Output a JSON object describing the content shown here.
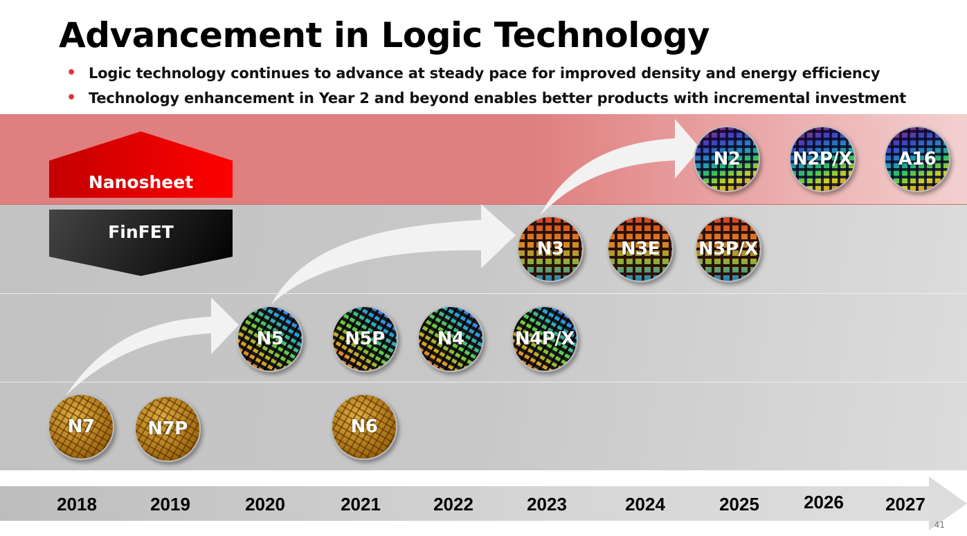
{
  "title": "Advancement in Logic Technology",
  "bullets": [
    "Logic technology continues to advance at steady pace for improved density and energy efficiency",
    "Technology enhancement in Year 2 and beyond enables better products with incremental investment"
  ],
  "colors": {
    "bullet": "#e8313a",
    "nanosheet": "#ff0000",
    "finfet": "#000000",
    "nanosheet_band": "#df7f7f"
  },
  "architectures": {
    "nanosheet": "Nanosheet",
    "finfet": "FinFET"
  },
  "nodes": [
    {
      "label": "N7",
      "year": "2018",
      "texture": "gold"
    },
    {
      "label": "N7P",
      "year": "2019",
      "texture": "gold"
    },
    {
      "label": "N6",
      "year": "2021",
      "texture": "gold"
    },
    {
      "label": "N5",
      "year": "2020",
      "texture": "dark"
    },
    {
      "label": "N5P",
      "year": "2021",
      "texture": "dark"
    },
    {
      "label": "N4",
      "year": "2022",
      "texture": "dark"
    },
    {
      "label": "N4P/X",
      "year": "2023",
      "texture": "dark"
    },
    {
      "label": "N3",
      "year": "2023",
      "texture": "brown"
    },
    {
      "label": "N3E",
      "year": "2024",
      "texture": "brown"
    },
    {
      "label": "N3P/X",
      "year": "2025",
      "texture": "brown"
    },
    {
      "label": "N2",
      "year": "2025",
      "texture": "rainbow"
    },
    {
      "label": "N2P/X",
      "year": "2026",
      "texture": "rainbow"
    },
    {
      "label": "A16",
      "year": "2027",
      "texture": "rainbow"
    }
  ],
  "years": [
    "2018",
    "2019",
    "2020",
    "2021",
    "2022",
    "2023",
    "2024",
    "2025",
    "2026",
    "2027"
  ],
  "page_number": "41"
}
